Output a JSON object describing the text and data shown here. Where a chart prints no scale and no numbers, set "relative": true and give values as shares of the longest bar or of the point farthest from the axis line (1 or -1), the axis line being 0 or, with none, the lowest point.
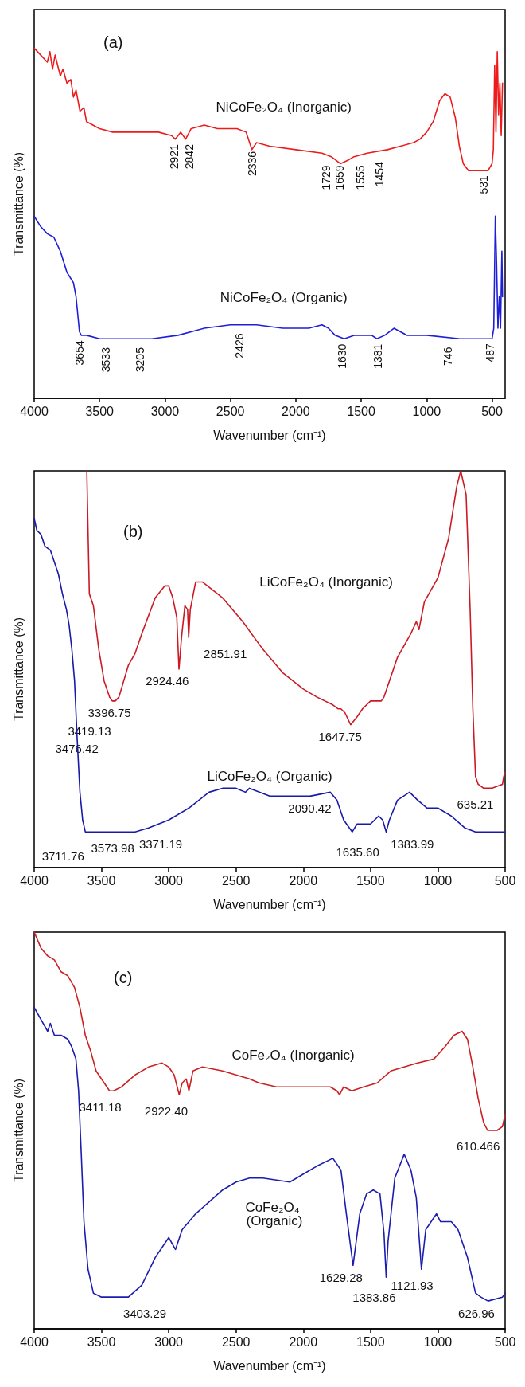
{
  "chart_data": [
    {
      "type": "line",
      "title": "(a)",
      "xlabel": "Wavenumber (cm⁻¹)",
      "ylabel": "Transmittance (%)",
      "relative": true,
      "xlim": [
        4000,
        400
      ],
      "xticks": [
        4000,
        3500,
        3000,
        2500,
        2000,
        1500,
        1000,
        500
      ],
      "series": [
        {
          "name": "NiCoFe₂O₄ (Inorganic)",
          "color": "#ec1c1c",
          "x": [
            4000,
            3950,
            3900,
            3880,
            3860,
            3840,
            3800,
            3780,
            3750,
            3720,
            3700,
            3680,
            3650,
            3620,
            3600,
            3500,
            3400,
            3200,
            3050,
            2950,
            2921,
            2880,
            2842,
            2800,
            2700,
            2600,
            2450,
            2380,
            2336,
            2300,
            2200,
            2000,
            1800,
            1729,
            1659,
            1600,
            1555,
            1454,
            1300,
            1200,
            1100,
            1050,
            1000,
            950,
            900,
            860,
            820,
            780,
            750,
            720,
            680,
            600,
            531,
            500,
            490,
            480,
            470,
            460,
            450,
            440,
            430,
            420
          ],
          "values": [
            1.0,
            0.98,
            0.96,
            0.99,
            0.94,
            0.98,
            0.92,
            0.94,
            0.9,
            0.91,
            0.86,
            0.88,
            0.82,
            0.83,
            0.79,
            0.77,
            0.76,
            0.76,
            0.76,
            0.75,
            0.74,
            0.76,
            0.74,
            0.77,
            0.78,
            0.77,
            0.77,
            0.76,
            0.71,
            0.73,
            0.72,
            0.71,
            0.7,
            0.69,
            0.67,
            0.68,
            0.69,
            0.7,
            0.71,
            0.72,
            0.73,
            0.74,
            0.76,
            0.79,
            0.85,
            0.87,
            0.86,
            0.8,
            0.72,
            0.67,
            0.65,
            0.65,
            0.65,
            0.67,
            0.71,
            0.95,
            0.76,
            0.99,
            0.81,
            0.9,
            0.75,
            0.9
          ]
        },
        {
          "name": "NiCoFe₂O₄ (Organic)",
          "color": "#1e1ed8",
          "x": [
            4000,
            3950,
            3900,
            3850,
            3800,
            3750,
            3700,
            3680,
            3654,
            3640,
            3600,
            3500,
            3300,
            3100,
            2900,
            2700,
            2500,
            2426,
            2300,
            2100,
            1900,
            1800,
            1750,
            1700,
            1630,
            1550,
            1480,
            1420,
            1381,
            1320,
            1250,
            1200,
            1150,
            1000,
            746,
            500,
            487,
            475,
            465,
            455,
            445,
            435,
            425,
            420
          ],
          "values": [
            0.52,
            0.49,
            0.47,
            0.46,
            0.42,
            0.36,
            0.33,
            0.29,
            0.19,
            0.18,
            0.18,
            0.17,
            0.17,
            0.17,
            0.18,
            0.2,
            0.21,
            0.21,
            0.21,
            0.2,
            0.2,
            0.21,
            0.2,
            0.18,
            0.17,
            0.18,
            0.18,
            0.18,
            0.17,
            0.18,
            0.2,
            0.19,
            0.18,
            0.18,
            0.17,
            0.17,
            0.2,
            0.52,
            0.38,
            0.2,
            0.29,
            0.2,
            0.42,
            0.29
          ]
        }
      ],
      "annotations": [
        "2921",
        "2842",
        "2336",
        "1729",
        "1659",
        "1555",
        "1454",
        "531",
        "3654",
        "3533",
        "3205",
        "2426",
        "1630",
        "1381",
        "746",
        "487"
      ]
    },
    {
      "type": "line",
      "title": "(b)",
      "xlabel": "Wavenumber (cm⁻¹)",
      "ylabel": "Transmittance (%)",
      "relative": true,
      "xlim": [
        4000,
        500
      ],
      "xticks": [
        4000,
        3500,
        3000,
        2500,
        2000,
        1500,
        1000,
        500
      ],
      "series": [
        {
          "name": "LiCoFe₂O₄ (Inorganic)",
          "color": "#cc1a24",
          "x": [
            3609,
            3590,
            3560,
            3520,
            3480,
            3440,
            3420,
            3397,
            3370,
            3300,
            3250,
            3200,
            3100,
            3030,
            3000,
            2970,
            2940,
            2924,
            2905,
            2880,
            2860,
            2852,
            2840,
            2800,
            2750,
            2600,
            2450,
            2300,
            2150,
            2000,
            1900,
            1780,
            1740,
            1720,
            1690,
            1648,
            1600,
            1560,
            1500,
            1420,
            1400,
            1300,
            1200,
            1160,
            1140,
            1100,
            1000,
            920,
            860,
            830,
            790,
            760,
            740,
            720,
            700,
            660,
            600,
            520,
            510,
            500
          ],
          "values": [
            1.0,
            0.69,
            0.66,
            0.55,
            0.47,
            0.43,
            0.42,
            0.42,
            0.43,
            0.51,
            0.54,
            0.59,
            0.68,
            0.71,
            0.71,
            0.68,
            0.63,
            0.5,
            0.58,
            0.66,
            0.65,
            0.58,
            0.65,
            0.72,
            0.72,
            0.68,
            0.62,
            0.55,
            0.49,
            0.45,
            0.43,
            0.41,
            0.4,
            0.4,
            0.39,
            0.36,
            0.38,
            0.4,
            0.42,
            0.42,
            0.43,
            0.53,
            0.59,
            0.62,
            0.6,
            0.67,
            0.73,
            0.83,
            0.96,
            1.0,
            0.94,
            0.65,
            0.4,
            0.23,
            0.21,
            0.2,
            0.2,
            0.21,
            0.23,
            0.24
          ]
        },
        {
          "name": "LiCoFe₂O₄ (Organic)",
          "color": "#1a1aa8",
          "x": [
            4000,
            3980,
            3950,
            3920,
            3880,
            3850,
            3820,
            3790,
            3760,
            3740,
            3720,
            3700,
            3680,
            3660,
            3640,
            3620,
            3574,
            3500,
            3371,
            3250,
            3150,
            3000,
            2850,
            2700,
            2600,
            2500,
            2430,
            2400,
            2250,
            2090,
            1950,
            1800,
            1750,
            1700,
            1636,
            1600,
            1500,
            1440,
            1410,
            1384,
            1360,
            1300,
            1210,
            1150,
            1080,
            1000,
            900,
            800,
            720,
            635,
            500
          ],
          "values": [
            0.88,
            0.85,
            0.84,
            0.81,
            0.8,
            0.77,
            0.74,
            0.69,
            0.65,
            0.61,
            0.55,
            0.47,
            0.32,
            0.19,
            0.12,
            0.09,
            0.09,
            0.09,
            0.09,
            0.09,
            0.1,
            0.12,
            0.15,
            0.19,
            0.2,
            0.2,
            0.19,
            0.2,
            0.18,
            0.18,
            0.18,
            0.19,
            0.17,
            0.12,
            0.09,
            0.11,
            0.11,
            0.13,
            0.12,
            0.09,
            0.12,
            0.17,
            0.19,
            0.17,
            0.15,
            0.15,
            0.13,
            0.1,
            0.09,
            0.09,
            0.09
          ]
        }
      ],
      "annotations": [
        "2924.46",
        "2851.91",
        "3396.75",
        "3419.13",
        "3476.42",
        "1647.75",
        "635.21",
        "2090.42",
        "3711.76",
        "3573.98",
        "3371.19",
        "1635.60",
        "1383.99"
      ]
    },
    {
      "type": "line",
      "title": "(c)",
      "xlabel": "Wavenumber (cm⁻¹)",
      "ylabel": "Transmittance (%)",
      "relative": true,
      "xlim": [
        4000,
        500
      ],
      "xticks": [
        4000,
        3500,
        3000,
        2500,
        2000,
        1500,
        1000,
        500
      ],
      "series": [
        {
          "name": "CoFe₂O₄ (Inorganic)",
          "color": "#cc2020",
          "x": [
            4000,
            3950,
            3900,
            3850,
            3800,
            3750,
            3700,
            3660,
            3620,
            3580,
            3540,
            3480,
            3440,
            3411,
            3350,
            3250,
            3150,
            3050,
            3000,
            2960,
            2922,
            2900,
            2870,
            2850,
            2820,
            2750,
            2600,
            2400,
            2330,
            2200,
            2000,
            1800,
            1750,
            1730,
            1700,
            1640,
            1550,
            1450,
            1350,
            1250,
            1150,
            1030,
            950,
            880,
            820,
            780,
            740,
            700,
            660,
            630,
            610,
            560,
            520,
            500
          ],
          "values": [
            1.0,
            0.96,
            0.94,
            0.93,
            0.9,
            0.89,
            0.86,
            0.81,
            0.74,
            0.7,
            0.65,
            0.62,
            0.6,
            0.6,
            0.61,
            0.64,
            0.66,
            0.67,
            0.66,
            0.64,
            0.59,
            0.62,
            0.63,
            0.6,
            0.65,
            0.66,
            0.65,
            0.63,
            0.62,
            0.61,
            0.61,
            0.61,
            0.6,
            0.59,
            0.61,
            0.6,
            0.61,
            0.62,
            0.65,
            0.66,
            0.67,
            0.68,
            0.71,
            0.74,
            0.75,
            0.73,
            0.66,
            0.58,
            0.52,
            0.5,
            0.5,
            0.5,
            0.51,
            0.54
          ]
        },
        {
          "name": "CoFe₂O₄ (Organic)",
          "color": "#1c1cb0",
          "x": [
            4000,
            3950,
            3900,
            3880,
            3850,
            3800,
            3750,
            3720,
            3690,
            3670,
            3650,
            3630,
            3600,
            3560,
            3500,
            3403,
            3300,
            3200,
            3100,
            3000,
            2950,
            2900,
            2800,
            2700,
            2600,
            2500,
            2400,
            2300,
            2100,
            2000,
            1900,
            1780,
            1720,
            1680,
            1630,
            1580,
            1530,
            1480,
            1430,
            1400,
            1384,
            1370,
            1320,
            1250,
            1200,
            1160,
            1122,
            1090,
            1050,
            1010,
            980,
            900,
            850,
            780,
            720,
            680,
            627,
            520,
            500
          ],
          "values": [
            0.81,
            0.78,
            0.75,
            0.77,
            0.74,
            0.74,
            0.73,
            0.71,
            0.68,
            0.6,
            0.44,
            0.27,
            0.15,
            0.09,
            0.08,
            0.08,
            0.08,
            0.11,
            0.18,
            0.23,
            0.2,
            0.25,
            0.29,
            0.32,
            0.35,
            0.37,
            0.38,
            0.38,
            0.37,
            0.39,
            0.41,
            0.43,
            0.4,
            0.29,
            0.16,
            0.29,
            0.34,
            0.35,
            0.34,
            0.24,
            0.13,
            0.22,
            0.38,
            0.44,
            0.4,
            0.33,
            0.15,
            0.25,
            0.27,
            0.29,
            0.27,
            0.27,
            0.25,
            0.18,
            0.09,
            0.08,
            0.07,
            0.08,
            0.09
          ]
        }
      ],
      "annotations": [
        "3411.18",
        "2922.40",
        "610.466",
        "1629.28",
        "1383.86",
        "1121.93",
        "3403.29",
        "626.96"
      ]
    }
  ]
}
